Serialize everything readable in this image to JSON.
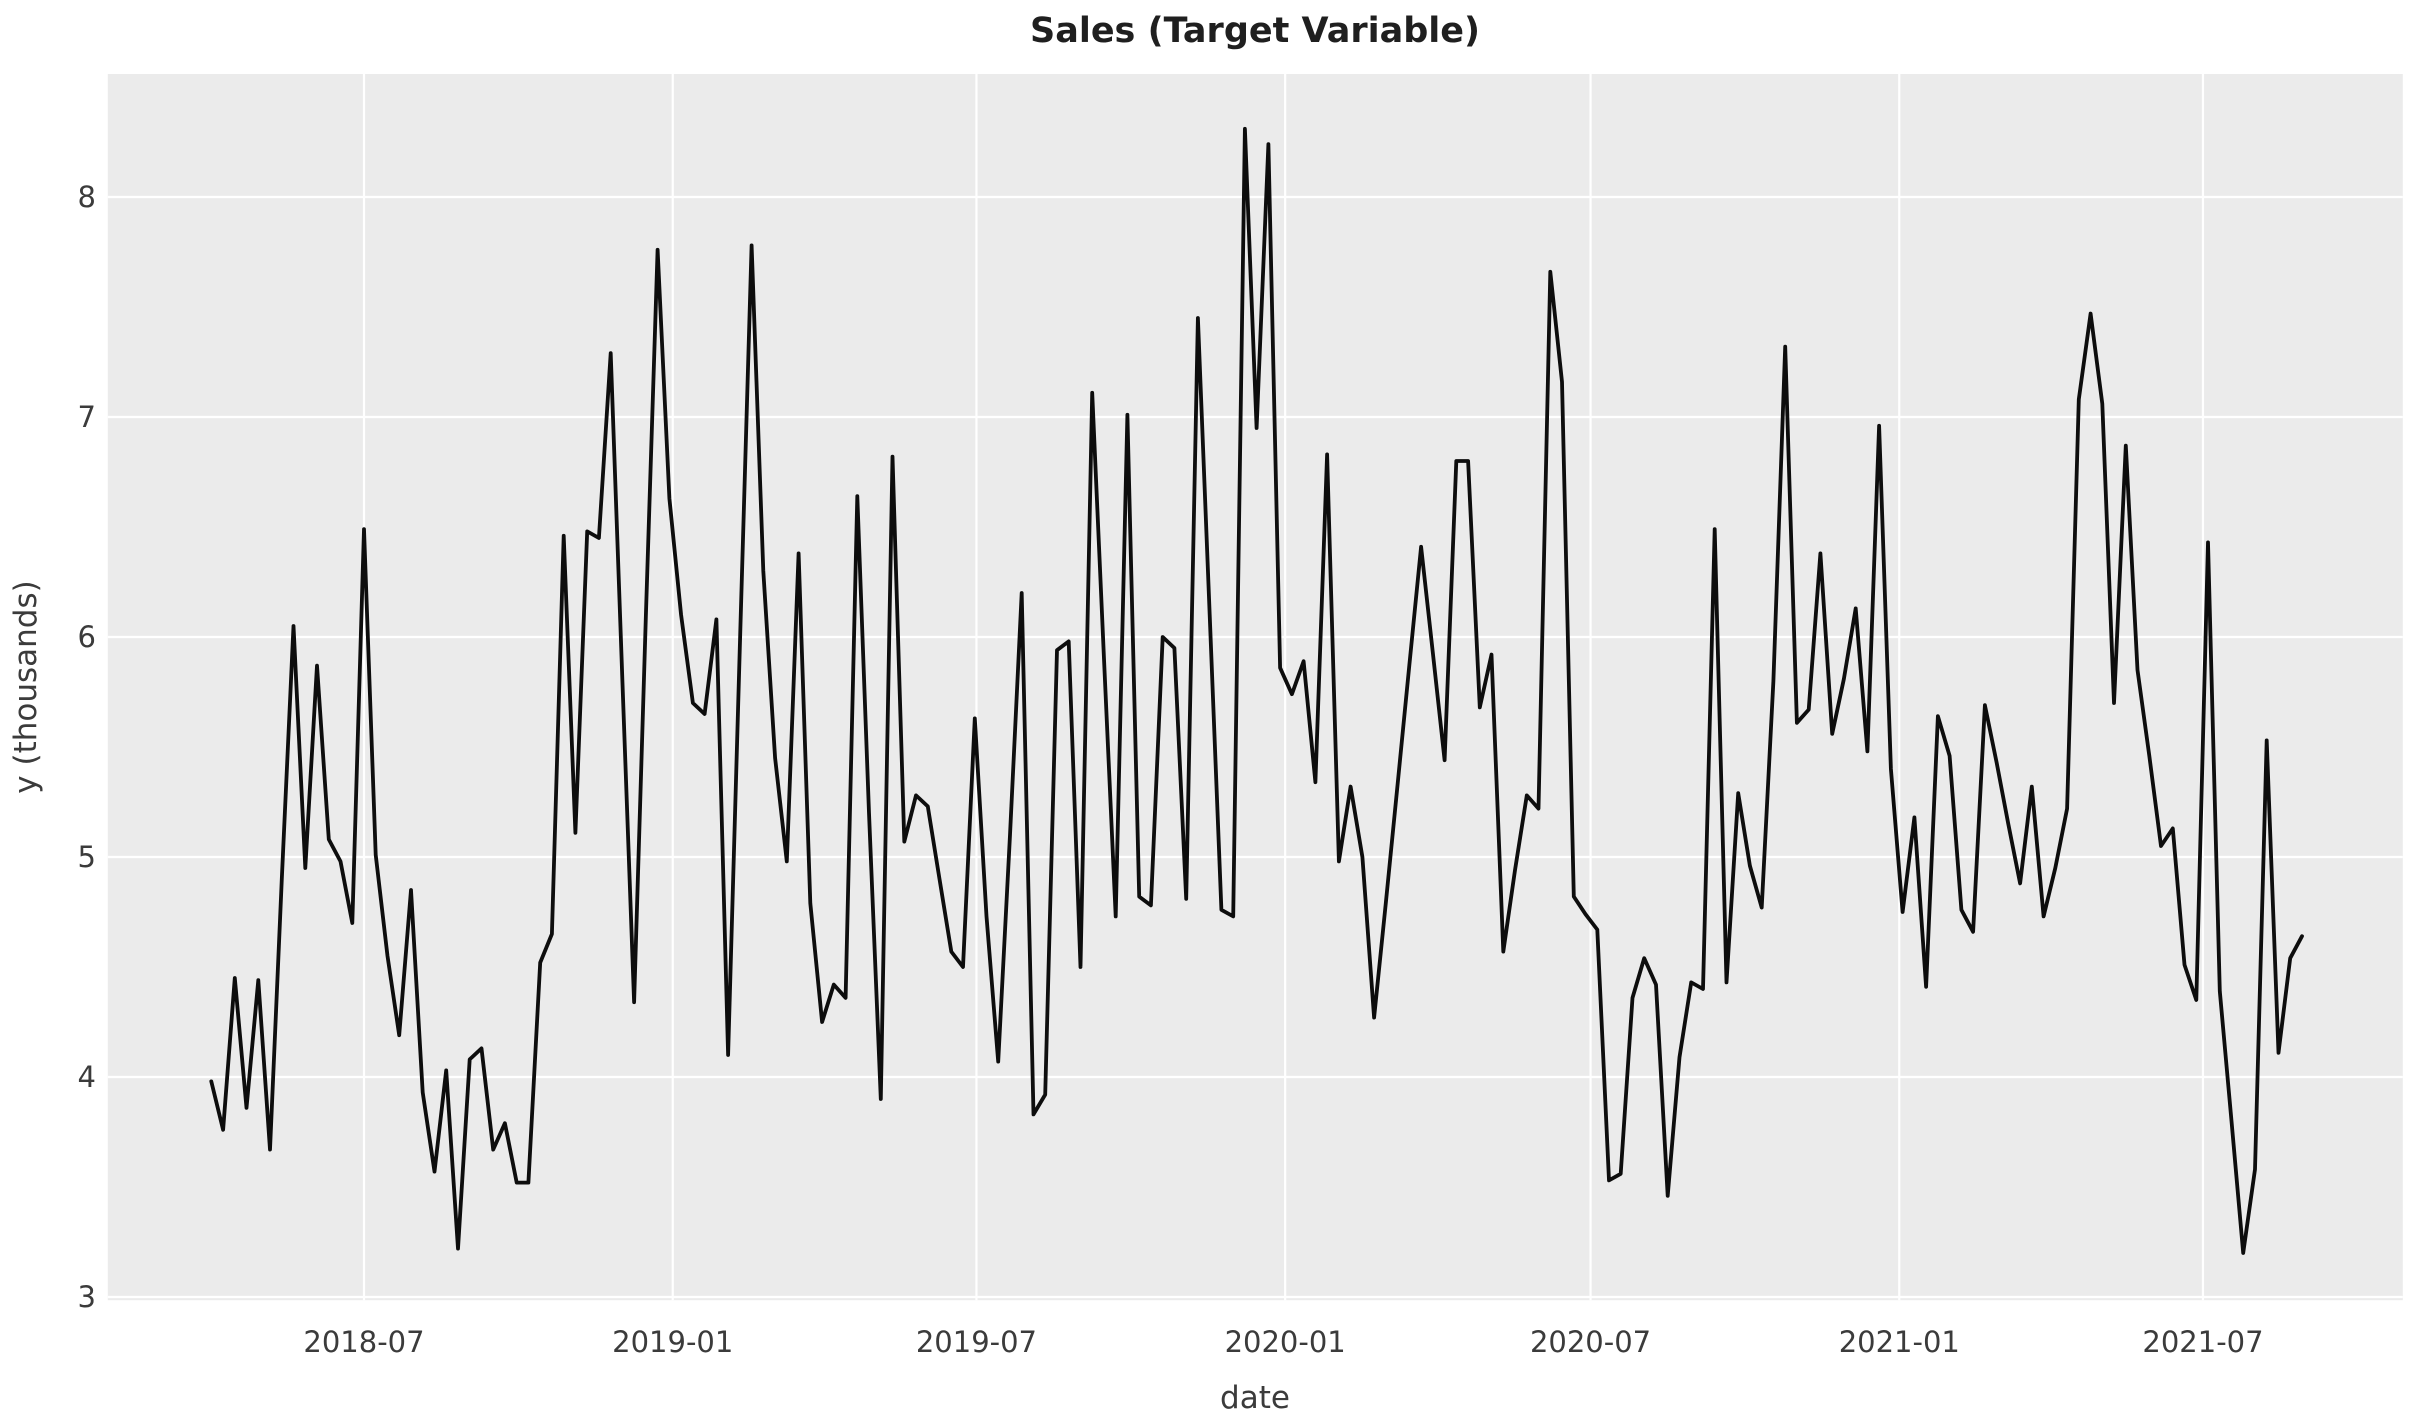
{
  "chart_data": {
    "type": "line",
    "title": "Sales (Target Variable)",
    "xlabel": "date",
    "ylabel": "y (thousands)",
    "series_name": "sales",
    "line_color": "#0d0d0d",
    "plot_bg_color": "#ebebeb",
    "grid_color": "#ffffff",
    "grid": true,
    "legend": "none",
    "x_start_date": "2018-04-01",
    "x_step_days": 7,
    "yticks": [
      "3",
      "4",
      "5",
      "6",
      "7",
      "8"
    ],
    "xticks": [
      "2018-07",
      "2019-01",
      "2019-07",
      "2020-01",
      "2020-07",
      "2021-01",
      "2021-07"
    ],
    "ylim": [
      2.97,
      8.56
    ],
    "xlim_dates": [
      "2018-01-29",
      "2021-11-01"
    ],
    "values": [
      3.98,
      3.76,
      4.45,
      3.86,
      4.44,
      3.67,
      4.9,
      6.05,
      4.95,
      5.87,
      5.08,
      4.98,
      4.7,
      6.49,
      5.01,
      4.55,
      4.19,
      4.85,
      3.93,
      3.57,
      4.03,
      3.22,
      4.08,
      4.13,
      3.67,
      3.79,
      3.52,
      3.52,
      4.52,
      4.65,
      6.46,
      5.11,
      6.48,
      6.45,
      7.29,
      5.8,
      4.34,
      6.1,
      7.76,
      6.63,
      6.1,
      5.7,
      5.65,
      6.08,
      4.1,
      5.95,
      7.78,
      6.3,
      5.45,
      4.98,
      6.38,
      4.79,
      4.25,
      4.42,
      4.36,
      6.64,
      5.2,
      3.9,
      6.82,
      5.07,
      5.28,
      5.23,
      4.9,
      4.57,
      4.5,
      5.63,
      4.73,
      4.07,
      5.1,
      6.2,
      3.83,
      3.92,
      5.94,
      5.98,
      4.5,
      7.11,
      5.9,
      4.73,
      7.01,
      4.82,
      4.78,
      6.0,
      5.95,
      4.81,
      7.45,
      6.1,
      4.76,
      4.73,
      8.31,
      6.95,
      8.24,
      5.86,
      5.74,
      5.89,
      5.34,
      6.83,
      4.98,
      5.32,
      5.0,
      4.27,
      4.79,
      5.33,
      5.87,
      6.41,
      5.93,
      5.44,
      6.8,
      6.8,
      5.68,
      5.92,
      4.57,
      4.94,
      5.28,
      5.22,
      7.66,
      7.16,
      4.82,
      4.74,
      4.67,
      3.53,
      3.56,
      4.36,
      4.54,
      4.42,
      3.46,
      4.09,
      4.43,
      4.4,
      6.49,
      4.43,
      5.29,
      4.96,
      4.77,
      5.8,
      7.32,
      5.61,
      5.67,
      6.38,
      5.56,
      5.81,
      6.13,
      5.48,
      6.96,
      5.4,
      4.75,
      5.18,
      4.41,
      5.64,
      5.46,
      4.76,
      4.66,
      5.69,
      5.43,
      5.15,
      4.88,
      5.32,
      4.73,
      4.95,
      5.22,
      7.08,
      7.47,
      7.06,
      5.7,
      6.87,
      5.85,
      5.46,
      5.05,
      5.13,
      4.51,
      4.35,
      6.43,
      4.39,
      3.8,
      3.2,
      3.58,
      5.53,
      4.11,
      4.54,
      4.64
    ]
  }
}
